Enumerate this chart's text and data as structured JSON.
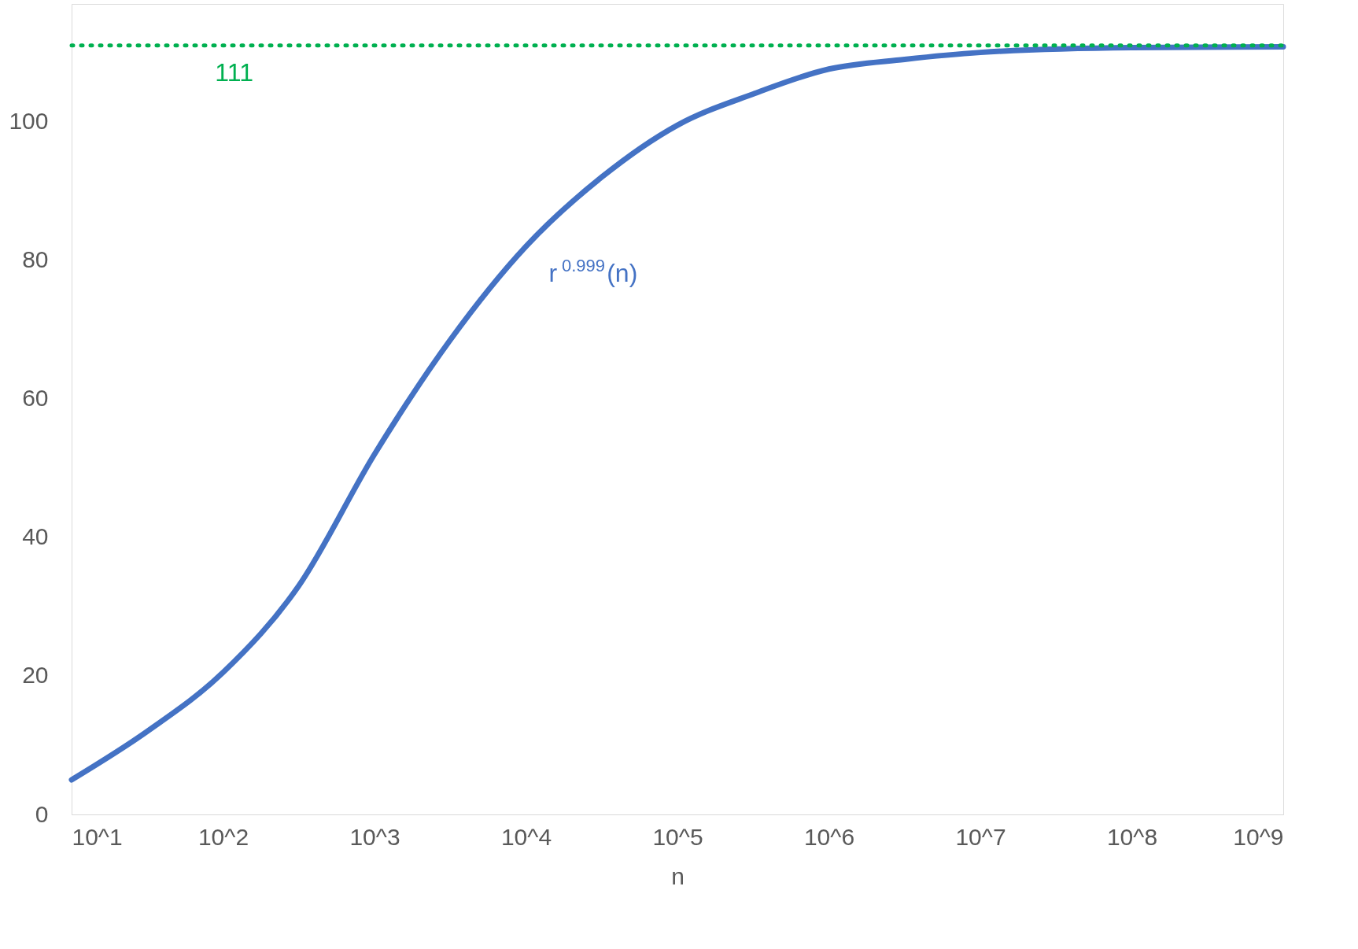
{
  "chart_data": {
    "type": "line",
    "xlabel": "n",
    "log": "x",
    "x": [
      10,
      31.6,
      100,
      316,
      1000,
      3162,
      10000,
      31623,
      100000,
      316228,
      1000000,
      3162278,
      10000000,
      100000000,
      1000000000
    ],
    "series": [
      {
        "name": "r$^{0.999}$(n)",
        "color": "#4472c4",
        "values": [
          5,
          12,
          20.5,
          33,
          52,
          68.5,
          82,
          92,
          99.5,
          104,
          107.6,
          109,
          110,
          110.7,
          110.8
        ]
      }
    ],
    "xlim": [
      10,
      1000000000
    ],
    "xticks": [
      {
        "value": 10,
        "label": "10^1"
      },
      {
        "value": 100,
        "label": "10^2"
      },
      {
        "value": 1000,
        "label": "10^3"
      },
      {
        "value": 10000,
        "label": "10^4"
      },
      {
        "value": 100000,
        "label": "10^5"
      },
      {
        "value": 1000000,
        "label": "10^6"
      },
      {
        "value": 10000000,
        "label": "10^7"
      },
      {
        "value": 100000000,
        "label": "10^8"
      },
      {
        "value": 1000000000,
        "label": "10^9"
      }
    ],
    "ylim": [
      0,
      117
    ],
    "yticks": [
      0,
      20,
      40,
      60,
      80,
      100
    ],
    "ref_lines": [
      {
        "axis": "y",
        "value": 111,
        "label": "111",
        "color": "#00b050",
        "line_style": "dotted"
      }
    ],
    "grid": false,
    "marker": "none",
    "line_style": "solid"
  }
}
